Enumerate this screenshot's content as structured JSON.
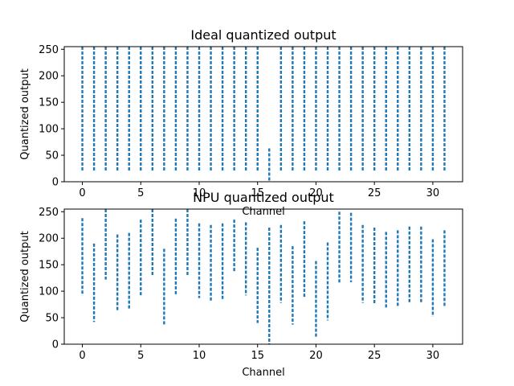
{
  "chart_data": [
    {
      "type": "scatter",
      "title": "Ideal quantized output",
      "xlabel": "Channel",
      "ylabel": "Quantized output",
      "xlim": [
        -1.55,
        32.55
      ],
      "ylim": [
        0,
        255
      ],
      "xticks": [
        0,
        5,
        10,
        15,
        20,
        25,
        30
      ],
      "yticks": [
        0,
        50,
        100,
        150,
        200,
        250
      ],
      "marker": "vertical-dash",
      "color": "#1f77b4",
      "grid": false,
      "series": [
        {
          "ranges": [
            {
              "x": 0,
              "y_min": 20,
              "y_max": 255
            },
            {
              "x": 1,
              "y_min": 20,
              "y_max": 255
            },
            {
              "x": 2,
              "y_min": 20,
              "y_max": 255
            },
            {
              "x": 3,
              "y_min": 20,
              "y_max": 255
            },
            {
              "x": 4,
              "y_min": 20,
              "y_max": 255
            },
            {
              "x": 5,
              "y_min": 20,
              "y_max": 255
            },
            {
              "x": 6,
              "y_min": 20,
              "y_max": 255
            },
            {
              "x": 7,
              "y_min": 20,
              "y_max": 255
            },
            {
              "x": 8,
              "y_min": 20,
              "y_max": 255
            },
            {
              "x": 9,
              "y_min": 20,
              "y_max": 255
            },
            {
              "x": 10,
              "y_min": 20,
              "y_max": 255
            },
            {
              "x": 11,
              "y_min": 20,
              "y_max": 255
            },
            {
              "x": 12,
              "y_min": 20,
              "y_max": 255
            },
            {
              "x": 13,
              "y_min": 20,
              "y_max": 255
            },
            {
              "x": 14,
              "y_min": 20,
              "y_max": 255
            },
            {
              "x": 15,
              "y_min": 20,
              "y_max": 255
            },
            {
              "x": 16,
              "y_min": 0,
              "y_max": 63
            },
            {
              "x": 17,
              "y_min": 20,
              "y_max": 255
            },
            {
              "x": 18,
              "y_min": 20,
              "y_max": 255
            },
            {
              "x": 19,
              "y_min": 20,
              "y_max": 255
            },
            {
              "x": 20,
              "y_min": 20,
              "y_max": 255
            },
            {
              "x": 21,
              "y_min": 20,
              "y_max": 255
            },
            {
              "x": 22,
              "y_min": 20,
              "y_max": 255
            },
            {
              "x": 23,
              "y_min": 20,
              "y_max": 255
            },
            {
              "x": 24,
              "y_min": 20,
              "y_max": 255
            },
            {
              "x": 25,
              "y_min": 20,
              "y_max": 255
            },
            {
              "x": 26,
              "y_min": 20,
              "y_max": 255
            },
            {
              "x": 27,
              "y_min": 20,
              "y_max": 255
            },
            {
              "x": 28,
              "y_min": 20,
              "y_max": 255
            },
            {
              "x": 29,
              "y_min": 20,
              "y_max": 255
            },
            {
              "x": 30,
              "y_min": 20,
              "y_max": 255
            },
            {
              "x": 31,
              "y_min": 20,
              "y_max": 255
            }
          ]
        }
      ]
    },
    {
      "type": "scatter",
      "title": "NPU quantized output",
      "xlabel": "Channel",
      "ylabel": "Quantized output",
      "xlim": [
        -1.55,
        32.55
      ],
      "ylim": [
        0,
        255
      ],
      "xticks": [
        0,
        5,
        10,
        15,
        20,
        25,
        30
      ],
      "yticks": [
        0,
        50,
        100,
        150,
        200,
        250
      ],
      "marker": "vertical-dash",
      "color": "#1f77b4",
      "grid": false,
      "series": [
        {
          "ranges": [
            {
              "x": 0,
              "y_min": 92,
              "y_max": 238
            },
            {
              "x": 1,
              "y_min": 42,
              "y_max": 190
            },
            {
              "x": 2,
              "y_min": 122,
              "y_max": 255
            },
            {
              "x": 3,
              "y_min": 62,
              "y_max": 207
            },
            {
              "x": 4,
              "y_min": 67,
              "y_max": 210
            },
            {
              "x": 5,
              "y_min": 90,
              "y_max": 235
            },
            {
              "x": 6,
              "y_min": 130,
              "y_max": 255
            },
            {
              "x": 7,
              "y_min": 35,
              "y_max": 180
            },
            {
              "x": 8,
              "y_min": 92,
              "y_max": 237
            },
            {
              "x": 9,
              "y_min": 130,
              "y_max": 255
            },
            {
              "x": 10,
              "y_min": 87,
              "y_max": 228
            },
            {
              "x": 11,
              "y_min": 82,
              "y_max": 225
            },
            {
              "x": 12,
              "y_min": 85,
              "y_max": 228
            },
            {
              "x": 13,
              "y_min": 135,
              "y_max": 235
            },
            {
              "x": 14,
              "y_min": 92,
              "y_max": 230
            },
            {
              "x": 15,
              "y_min": 40,
              "y_max": 182
            },
            {
              "x": 16,
              "y_min": 0,
              "y_max": 220
            },
            {
              "x": 17,
              "y_min": 78,
              "y_max": 225
            },
            {
              "x": 18,
              "y_min": 37,
              "y_max": 185
            },
            {
              "x": 19,
              "y_min": 88,
              "y_max": 232
            },
            {
              "x": 20,
              "y_min": 12,
              "y_max": 157
            },
            {
              "x": 21,
              "y_min": 45,
              "y_max": 192
            },
            {
              "x": 22,
              "y_min": 115,
              "y_max": 250
            },
            {
              "x": 23,
              "y_min": 117,
              "y_max": 248
            },
            {
              "x": 24,
              "y_min": 78,
              "y_max": 225
            },
            {
              "x": 25,
              "y_min": 75,
              "y_max": 220
            },
            {
              "x": 26,
              "y_min": 68,
              "y_max": 212
            },
            {
              "x": 27,
              "y_min": 72,
              "y_max": 215
            },
            {
              "x": 28,
              "y_min": 78,
              "y_max": 222
            },
            {
              "x": 29,
              "y_min": 78,
              "y_max": 222
            },
            {
              "x": 30,
              "y_min": 52,
              "y_max": 198
            },
            {
              "x": 31,
              "y_min": 72,
              "y_max": 215
            }
          ]
        }
      ]
    }
  ]
}
